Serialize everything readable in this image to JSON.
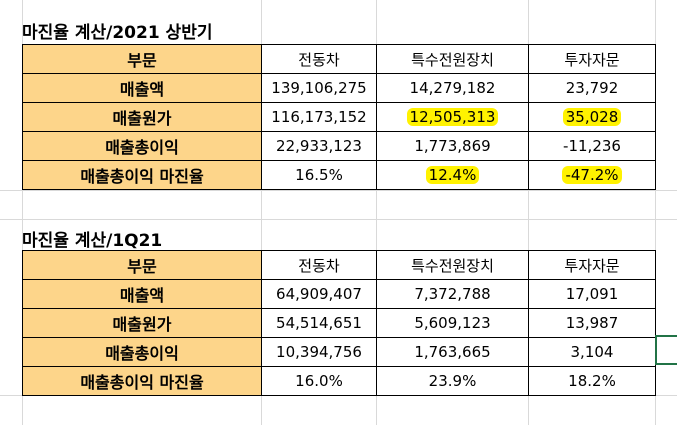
{
  "sections": [
    {
      "title": "마진율 계산/2021 상반기",
      "header": [
        "부문",
        "전동차",
        "특수전원장치",
        "투자자문"
      ],
      "rows": [
        {
          "label": "매출액",
          "values": [
            "139,106,275",
            "14,279,182",
            "23,792"
          ]
        },
        {
          "label": "매출원가",
          "values": [
            "116,173,152",
            "12,505,313",
            "35,028"
          ]
        },
        {
          "label": "매출총이익",
          "values": [
            "22,933,123",
            "1,773,869",
            "-11,236"
          ]
        },
        {
          "label": "매출총이익 마진율",
          "values": [
            "16.5%",
            "12.4%",
            "-47.2%"
          ]
        }
      ]
    },
    {
      "title": "마진율 계산/1Q21",
      "header": [
        "부문",
        "전동차",
        "특수전원장치",
        "투자자문"
      ],
      "rows": [
        {
          "label": "매출액",
          "values": [
            "64,909,407",
            "7,372,788",
            "17,091"
          ]
        },
        {
          "label": "매출원가",
          "values": [
            "54,514,651",
            "5,609,123",
            "13,987"
          ]
        },
        {
          "label": "매출총이익",
          "values": [
            "10,394,756",
            "1,763,665",
            "3,104"
          ]
        },
        {
          "label": "매출총이익 마진율",
          "values": [
            "16.0%",
            "23.9%",
            "18.2%"
          ]
        }
      ]
    }
  ],
  "colors": {
    "header_fill": "#fdd58a",
    "highlight": "#fff200",
    "selection_border": "#217346"
  }
}
